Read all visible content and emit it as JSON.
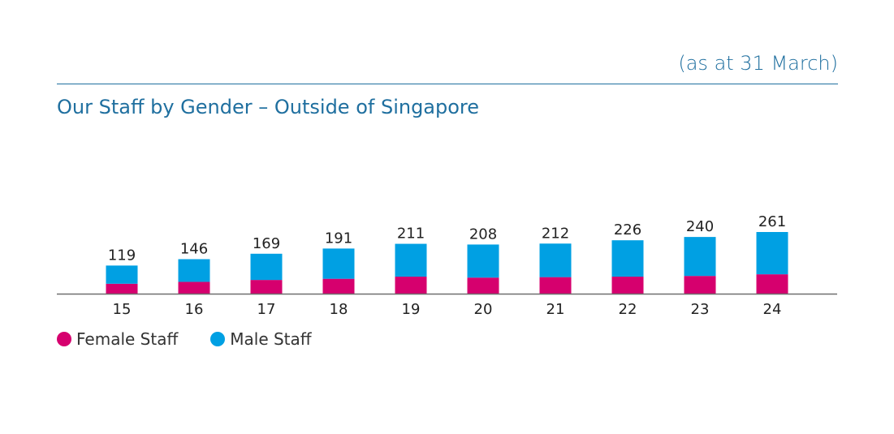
{
  "header": {
    "note": "(as at 31 March)",
    "title": "Our Staff by Gender – Outside of Singapore"
  },
  "colors": {
    "accent": "#1f6f9f",
    "female": "#d6006e",
    "male": "#00a0e3",
    "axis": "#6f6f6f",
    "text": "#222222"
  },
  "chart_data": {
    "type": "bar",
    "stacked": true,
    "categories": [
      "15",
      "16",
      "17",
      "18",
      "19",
      "20",
      "21",
      "22",
      "23",
      "24"
    ],
    "totals": [
      119,
      146,
      169,
      191,
      211,
      208,
      212,
      226,
      240,
      261
    ],
    "series": [
      {
        "name": "Female Staff",
        "values": [
          42,
          50,
          58,
          63,
          72,
          68,
          70,
          72,
          75,
          82
        ]
      },
      {
        "name": "Male Staff",
        "values": [
          77,
          96,
          111,
          128,
          139,
          140,
          142,
          154,
          165,
          179
        ]
      }
    ],
    "ylim": [
      0,
      261
    ],
    "grid": false,
    "legend_position": "bottom-left"
  },
  "legend": {
    "female_label": "Female Staff",
    "male_label": "Male Staff"
  }
}
